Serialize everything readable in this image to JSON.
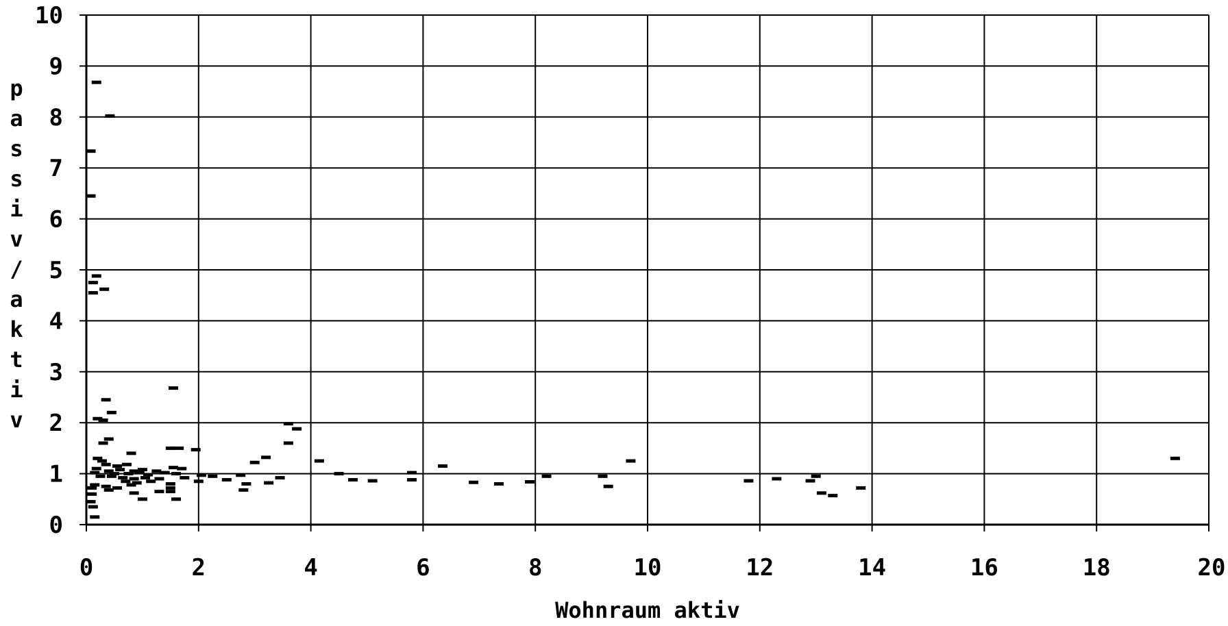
{
  "chart_data": {
    "type": "scatter",
    "xlabel": "Wohnraum aktiv",
    "ylabel": "passiv/aktiv",
    "xlim": [
      0,
      20
    ],
    "ylim": [
      0,
      10
    ],
    "x_ticks": [
      "0",
      "2",
      "4",
      "6",
      "8",
      "10",
      "12",
      "14",
      "16",
      "18",
      "20"
    ],
    "y_ticks": [
      "0",
      "1",
      "2",
      "3",
      "4",
      "5",
      "6",
      "7",
      "8",
      "9",
      "10"
    ],
    "grid": true,
    "marker": "dash",
    "points": [
      [
        0.18,
        8.68
      ],
      [
        0.42,
        8.02
      ],
      [
        0.08,
        7.33
      ],
      [
        0.08,
        6.45
      ],
      [
        0.18,
        4.88
      ],
      [
        0.12,
        4.75
      ],
      [
        0.12,
        4.55
      ],
      [
        0.32,
        4.62
      ],
      [
        1.55,
        2.68
      ],
      [
        0.35,
        2.45
      ],
      [
        0.45,
        2.2
      ],
      [
        0.2,
        2.08
      ],
      [
        0.3,
        2.05
      ],
      [
        3.6,
        1.98
      ],
      [
        3.75,
        1.88
      ],
      [
        0.4,
        1.68
      ],
      [
        0.3,
        1.6
      ],
      [
        3.6,
        1.6
      ],
      [
        1.5,
        1.5
      ],
      [
        1.65,
        1.5
      ],
      [
        1.95,
        1.47
      ],
      [
        0.8,
        1.4
      ],
      [
        3.2,
        1.32
      ],
      [
        0.2,
        1.3
      ],
      [
        0.28,
        1.25
      ],
      [
        4.15,
        1.25
      ],
      [
        3.0,
        1.22
      ],
      [
        9.7,
        1.25
      ],
      [
        19.4,
        1.3
      ],
      [
        0.35,
        1.18
      ],
      [
        0.55,
        1.15
      ],
      [
        0.72,
        1.18
      ],
      [
        1.55,
        1.12
      ],
      [
        6.35,
        1.15
      ],
      [
        0.18,
        1.1
      ],
      [
        0.4,
        1.05
      ],
      [
        0.6,
        1.08
      ],
      [
        0.85,
        1.05
      ],
      [
        1.0,
        1.08
      ],
      [
        1.25,
        1.05
      ],
      [
        1.7,
        1.1
      ],
      [
        0.15,
        1.02
      ],
      [
        0.5,
        1.0
      ],
      [
        0.75,
        1.0
      ],
      [
        0.95,
        1.02
      ],
      [
        1.1,
        0.98
      ],
      [
        1.4,
        1.02
      ],
      [
        1.6,
        1.0
      ],
      [
        2.05,
        0.97
      ],
      [
        2.25,
        0.95
      ],
      [
        2.75,
        0.97
      ],
      [
        0.25,
        0.95
      ],
      [
        0.45,
        0.95
      ],
      [
        0.65,
        0.92
      ],
      [
        0.85,
        0.9
      ],
      [
        1.05,
        0.92
      ],
      [
        1.3,
        0.9
      ],
      [
        1.75,
        0.92
      ],
      [
        4.5,
        1.0
      ],
      [
        5.8,
        1.02
      ],
      [
        8.2,
        0.95
      ],
      [
        9.2,
        0.95
      ],
      [
        13.0,
        0.95
      ],
      [
        2.5,
        0.88
      ],
      [
        3.45,
        0.92
      ],
      [
        4.75,
        0.88
      ],
      [
        5.1,
        0.86
      ],
      [
        5.8,
        0.88
      ],
      [
        6.9,
        0.83
      ],
      [
        7.35,
        0.8
      ],
      [
        7.9,
        0.84
      ],
      [
        11.8,
        0.86
      ],
      [
        12.3,
        0.9
      ],
      [
        12.9,
        0.86
      ],
      [
        2.0,
        0.85
      ],
      [
        0.7,
        0.85
      ],
      [
        0.9,
        0.82
      ],
      [
        1.15,
        0.85
      ],
      [
        1.5,
        0.8
      ],
      [
        0.15,
        0.78
      ],
      [
        0.35,
        0.75
      ],
      [
        0.55,
        0.72
      ],
      [
        0.8,
        0.78
      ],
      [
        1.5,
        0.72
      ],
      [
        2.85,
        0.8
      ],
      [
        3.25,
        0.82
      ],
      [
        0.1,
        0.72
      ],
      [
        0.4,
        0.68
      ],
      [
        1.3,
        0.65
      ],
      [
        1.5,
        0.65
      ],
      [
        2.8,
        0.68
      ],
      [
        9.3,
        0.75
      ],
      [
        13.8,
        0.72
      ],
      [
        13.1,
        0.62
      ],
      [
        13.3,
        0.57
      ],
      [
        0.85,
        0.62
      ],
      [
        0.1,
        0.6
      ],
      [
        1.0,
        0.5
      ],
      [
        1.6,
        0.5
      ],
      [
        0.08,
        0.45
      ],
      [
        0.12,
        0.35
      ],
      [
        0.15,
        0.15
      ]
    ]
  }
}
